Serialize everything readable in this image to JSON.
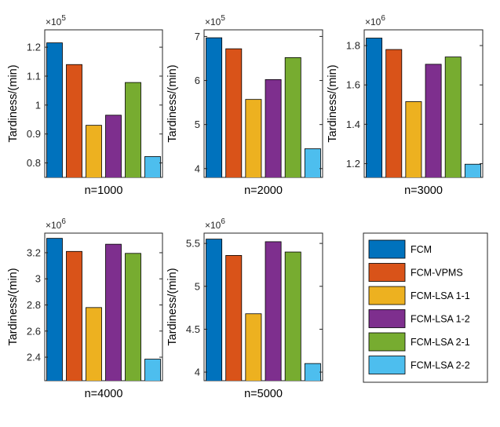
{
  "colors": {
    "series": [
      "#0072BD",
      "#D95319",
      "#EDB120",
      "#7E2F8E",
      "#77AC30",
      "#4DBEEE"
    ],
    "axis": "#262626",
    "bar_edge": "#000000"
  },
  "legend": {
    "entries": [
      "FCM",
      "FCM-VPMS",
      "FCM-LSA 1-1",
      "FCM-LSA 1-2",
      "FCM-LSA 2-1",
      "FCM-LSA 2-2"
    ]
  },
  "chart_data": [
    {
      "type": "bar",
      "xlabel": "n=1000",
      "ylabel": "Tardiness/(min)",
      "multiplier": "×10",
      "exponent": "5",
      "categories": [
        "FCM",
        "FCM-VPMS",
        "FCM-LSA 1-1",
        "FCM-LSA 1-2",
        "FCM-LSA 2-1",
        "FCM-LSA 2-2"
      ],
      "values": [
        1.215,
        1.14,
        0.93,
        0.965,
        1.078,
        0.822
      ],
      "ylim": [
        0.75,
        1.26
      ],
      "yticks": [
        0.8,
        0.9,
        1,
        1.1,
        1.2
      ],
      "yticklabels": [
        "0.8",
        "0.9",
        "1",
        "1.1",
        "1.2"
      ]
    },
    {
      "type": "bar",
      "xlabel": "n=2000",
      "ylabel": "Tardiness/(min)",
      "multiplier": "×10",
      "exponent": "5",
      "categories": [
        "FCM",
        "FCM-VPMS",
        "FCM-LSA 1-1",
        "FCM-LSA 1-2",
        "FCM-LSA 2-1",
        "FCM-LSA 2-2"
      ],
      "values": [
        6.97,
        6.72,
        5.57,
        6.02,
        6.52,
        4.45
      ],
      "ylim": [
        3.8,
        7.15
      ],
      "yticks": [
        4,
        5,
        6,
        7
      ],
      "yticklabels": [
        "4",
        "5",
        "6",
        "7"
      ]
    },
    {
      "type": "bar",
      "xlabel": "n=3000",
      "ylabel": "Tardiness/(min)",
      "multiplier": "×10",
      "exponent": "6",
      "categories": [
        "FCM",
        "FCM-VPMS",
        "FCM-LSA 1-1",
        "FCM-LSA 1-2",
        "FCM-LSA 2-1",
        "FCM-LSA 2-2"
      ],
      "values": [
        1.838,
        1.78,
        1.515,
        1.705,
        1.742,
        1.197
      ],
      "ylim": [
        1.13,
        1.88
      ],
      "yticks": [
        1.2,
        1.4,
        1.6,
        1.8
      ],
      "yticklabels": [
        "1.2",
        "1.4",
        "1.6",
        "1.8"
      ]
    },
    {
      "type": "bar",
      "xlabel": "n=4000",
      "ylabel": "Tardiness/(min)",
      "multiplier": "×10",
      "exponent": "6",
      "categories": [
        "FCM",
        "FCM-VPMS",
        "FCM-LSA 1-1",
        "FCM-LSA 1-2",
        "FCM-LSA 2-1",
        "FCM-LSA 2-2"
      ],
      "values": [
        3.31,
        3.21,
        2.78,
        3.265,
        3.195,
        2.385
      ],
      "ylim": [
        2.22,
        3.35
      ],
      "yticks": [
        2.4,
        2.6,
        2.8,
        3,
        3.2
      ],
      "yticklabels": [
        "2.4",
        "2.6",
        "2.8",
        "3",
        "3.2"
      ]
    },
    {
      "type": "bar",
      "xlabel": "n=5000",
      "ylabel": "Tardiness/(min)",
      "multiplier": "×10",
      "exponent": "6",
      "categories": [
        "FCM",
        "FCM-VPMS",
        "FCM-LSA 1-1",
        "FCM-LSA 1-2",
        "FCM-LSA 2-1",
        "FCM-LSA 2-2"
      ],
      "values": [
        5.55,
        5.36,
        4.68,
        5.52,
        5.4,
        4.1
      ],
      "ylim": [
        3.9,
        5.62
      ],
      "yticks": [
        4,
        4.5,
        5,
        5.5
      ],
      "yticklabels": [
        "4",
        "4.5",
        "5",
        "5.5"
      ]
    }
  ]
}
